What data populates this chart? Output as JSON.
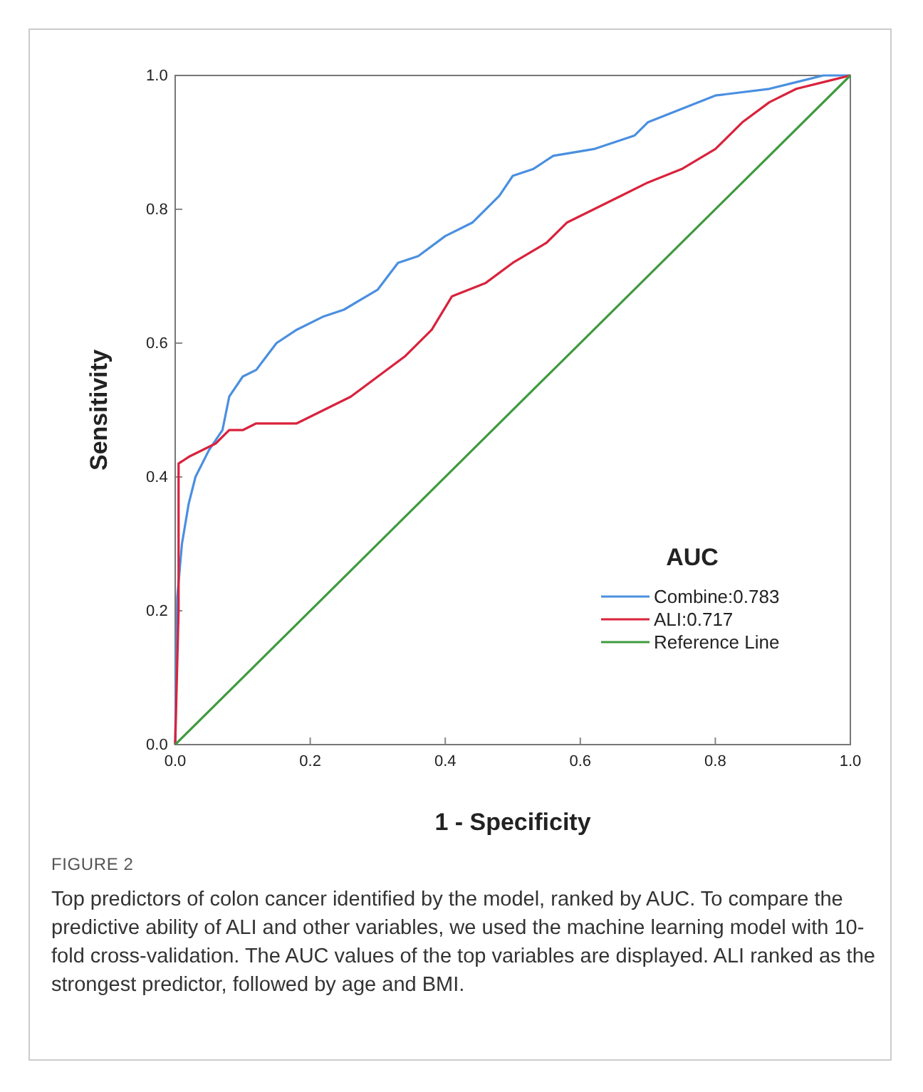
{
  "chart_data": {
    "type": "line",
    "xlabel": "1 - Specificity",
    "ylabel": "Sensitivity",
    "legend_title": "AUC",
    "legend": "bottom right",
    "xlim": [
      0,
      1
    ],
    "ylim": [
      0,
      1
    ],
    "xticks": [
      {
        "value": 0,
        "label": "0.0"
      },
      0.2,
      0.4,
      0.6,
      0.8,
      {
        "value": 1,
        "label": "1.0"
      }
    ],
    "yticks": [
      {
        "value": 0,
        "label": "0.0"
      },
      0.2,
      0.4,
      0.6,
      0.8,
      {
        "value": 1,
        "label": "1.0"
      }
    ],
    "series": [
      {
        "name": "Combine:0.783",
        "color": "#4a8fe0",
        "x": [
          0,
          0.003,
          0.01,
          0.02,
          0.03,
          0.05,
          0.07,
          0.08,
          0.1,
          0.12,
          0.15,
          0.18,
          0.22,
          0.25,
          0.3,
          0.33,
          0.36,
          0.4,
          0.44,
          0.48,
          0.5,
          0.53,
          0.56,
          0.62,
          0.68,
          0.7,
          0.75,
          0.8,
          0.88,
          0.92,
          0.96,
          1
        ],
        "values": [
          0,
          0.22,
          0.3,
          0.36,
          0.4,
          0.44,
          0.47,
          0.52,
          0.55,
          0.56,
          0.6,
          0.62,
          0.64,
          0.65,
          0.68,
          0.72,
          0.73,
          0.76,
          0.78,
          0.82,
          0.85,
          0.86,
          0.88,
          0.89,
          0.91,
          0.93,
          0.95,
          0.97,
          0.98,
          0.99,
          1,
          1
        ]
      },
      {
        "name": "ALI:0.717",
        "color": "#d9223c",
        "x": [
          0,
          0.005,
          0.005,
          0.02,
          0.06,
          0.08,
          0.1,
          0.12,
          0.18,
          0.22,
          0.26,
          0.3,
          0.34,
          0.38,
          0.41,
          0.46,
          0.5,
          0.55,
          0.58,
          0.62,
          0.66,
          0.7,
          0.75,
          0.8,
          0.84,
          0.88,
          0.92,
          0.96,
          1
        ],
        "values": [
          0,
          0.2,
          0.42,
          0.43,
          0.45,
          0.47,
          0.47,
          0.48,
          0.48,
          0.5,
          0.52,
          0.55,
          0.58,
          0.62,
          0.67,
          0.69,
          0.72,
          0.75,
          0.78,
          0.8,
          0.82,
          0.84,
          0.86,
          0.89,
          0.93,
          0.96,
          0.98,
          0.99,
          1
        ]
      },
      {
        "name": "Reference Line",
        "color": "#3f9a3f",
        "x": [
          0,
          1
        ],
        "values": [
          0,
          1
        ]
      }
    ],
    "annotations": [
      "FIGURE 2",
      "Top predictors of colon cancer identified by the model, ranked by AUC. To compare the predictive ability of ALI and other variables, we used the machine learning model with 10-fold cross-validation. The AUC values of the top variables are displayed. ALI ranked as the strongest predictor, followed by age and BMI."
    ]
  }
}
